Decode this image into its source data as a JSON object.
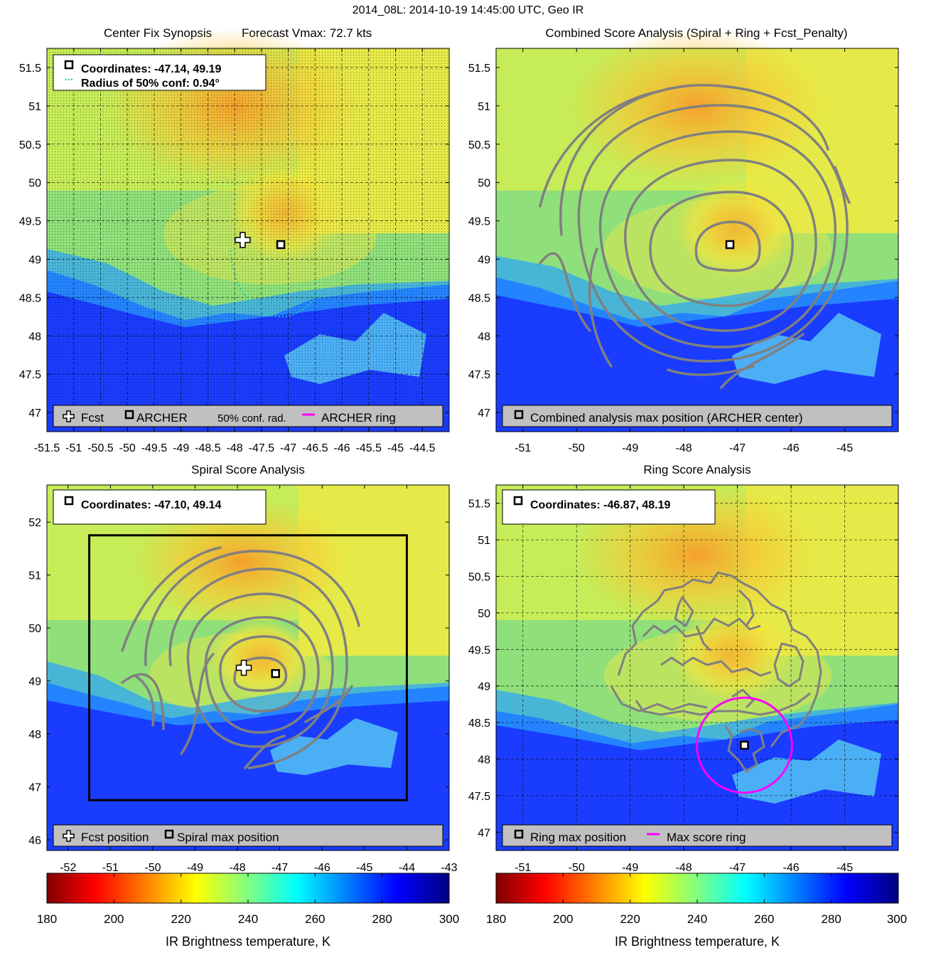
{
  "figure_title": "2014_08L: 2014-10-19 14:45:00 UTC, Geo IR",
  "colors": {
    "fcst_marker": "#ffffff",
    "archer_marker": "#000000",
    "conf_radius": "#1fc9a8",
    "archer_ring": "#ff00ff",
    "contour": "#808080",
    "spiral_box": "#000000",
    "legend_bg": "#c0c0c0"
  },
  "chart_data": [
    {
      "type": "heatmap",
      "title_left": "Center Fix Synopsis",
      "title_right": "Forecast Vmax: 72.7 kts",
      "xlim": [
        -51.5,
        -44.0
      ],
      "ylim": [
        46.75,
        51.75
      ],
      "x_ticks": [
        "-51.5",
        "-51",
        "-50.5",
        "-50",
        "-49.5",
        "-49",
        "-48.5",
        "-48",
        "-47.5",
        "-47",
        "-46.5",
        "-46",
        "-45.5",
        "-45",
        "-44.5"
      ],
      "y_ticks": [
        "47",
        "47.5",
        "48",
        "48.5",
        "49",
        "49.5",
        "50",
        "50.5",
        "51",
        "51.5"
      ],
      "grid": true,
      "info_lines": [
        "Coordinates: -47.14, 49.19",
        "Radius of 50% conf: 0.94°"
      ],
      "legend": [
        "Fcst",
        "ARCHER",
        "50% conf. rad.",
        "ARCHER ring"
      ],
      "fcst_position": [
        -47.85,
        49.25
      ],
      "archer_position": [
        -47.14,
        49.19
      ],
      "confidence_radius_deg": 0.94
    },
    {
      "type": "heatmap",
      "title": "Combined Score Analysis (Spiral + Ring + Fcst_Penalty)",
      "xlim": [
        -51.5,
        -44.0
      ],
      "ylim": [
        46.75,
        51.75
      ],
      "x_ticks": [
        "-51",
        "-50",
        "-49",
        "-48",
        "-47",
        "-46",
        "-45"
      ],
      "y_ticks": [
        "47",
        "47.5",
        "48",
        "48.5",
        "49",
        "49.5",
        "50",
        "50.5",
        "51",
        "51.5"
      ],
      "grid": false,
      "legend": [
        "Combined analysis max position (ARCHER center)"
      ],
      "max_position": [
        -47.14,
        49.19
      ]
    },
    {
      "type": "heatmap",
      "title": "Spiral Score Analysis",
      "xlim": [
        -52.5,
        -43.0
      ],
      "ylim": [
        45.8,
        52.7
      ],
      "x_ticks": [
        "-52",
        "-51",
        "-50",
        "-49",
        "-48",
        "-47",
        "-46",
        "-45",
        "-44",
        "-43"
      ],
      "y_ticks": [
        "46",
        "47",
        "48",
        "49",
        "50",
        "51",
        "52"
      ],
      "grid": false,
      "info_lines": [
        "Coordinates: -47.10, 49.14"
      ],
      "legend": [
        "Fcst position",
        "Spiral max position"
      ],
      "fcst_position": [
        -47.85,
        49.25
      ],
      "max_position": [
        -47.1,
        49.14
      ],
      "search_box": [
        -51.5,
        46.75,
        -44.0,
        51.75
      ]
    },
    {
      "type": "heatmap",
      "title": "Ring Score Analysis",
      "xlim": [
        -51.5,
        -44.0
      ],
      "ylim": [
        46.75,
        51.75
      ],
      "x_ticks": [
        "-51",
        "-50",
        "-49",
        "-48",
        "-47",
        "-46",
        "-45"
      ],
      "y_ticks": [
        "47",
        "47.5",
        "48",
        "48.5",
        "49",
        "49.5",
        "50",
        "50.5",
        "51",
        "51.5"
      ],
      "grid": true,
      "info_lines": [
        "Coordinates: -46.87, 48.19"
      ],
      "legend": [
        "Ring max position",
        "Max score ring"
      ],
      "max_position": [
        -46.87,
        48.19
      ],
      "ring_radius_deg": 0.75
    }
  ],
  "colorbars": [
    {
      "ticks": [
        "180",
        "200",
        "220",
        "240",
        "260",
        "280",
        "300"
      ],
      "range": [
        180,
        300
      ],
      "label": "IR Brightness temperature, K",
      "colormap": "jet-reversed"
    },
    {
      "ticks": [
        "180",
        "200",
        "220",
        "240",
        "260",
        "280",
        "300"
      ],
      "range": [
        180,
        300
      ],
      "label": "IR Brightness temperature, K",
      "colormap": "jet-reversed"
    }
  ]
}
